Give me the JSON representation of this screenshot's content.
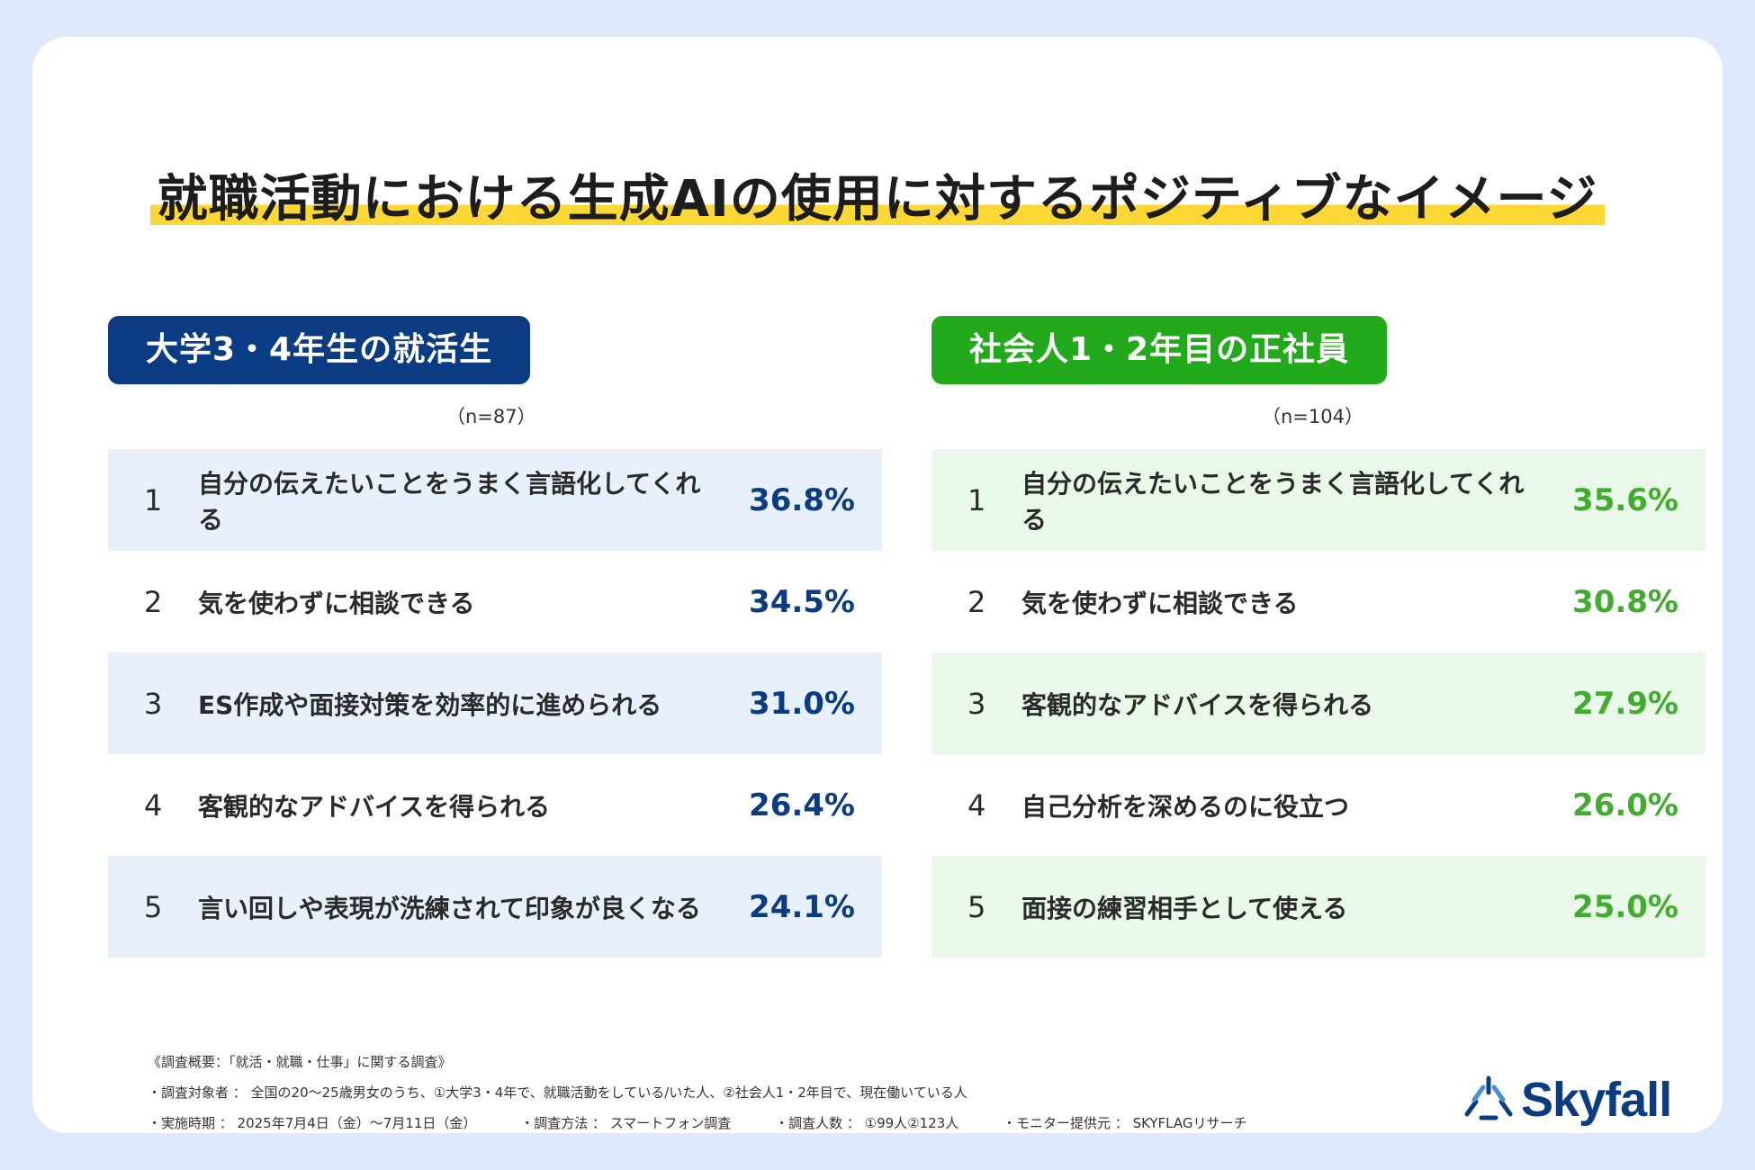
{
  "title": "就職活動における生成AIの使用に対するポジティブなイメージ",
  "colors": {
    "navy": "#0b3c83",
    "green": "#22aa1c",
    "green_text": "#41ad2f",
    "highlight": "#fdd835",
    "background": "#dde8fa"
  },
  "chart_data": [
    {
      "type": "table",
      "title": "大学3・4年生の就活生",
      "sample": "（n=87）",
      "columns": [
        "rank",
        "item",
        "percent"
      ],
      "rows": [
        {
          "rank": "1",
          "item": "自分の伝えたいことをうまく言語化してくれる",
          "percent": "36.8%",
          "value": 36.8
        },
        {
          "rank": "2",
          "item": "気を使わずに相談できる",
          "percent": "34.5%",
          "value": 34.5
        },
        {
          "rank": "3",
          "item": "ES作成や面接対策を効率的に進められる",
          "percent": "31.0%",
          "value": 31.0
        },
        {
          "rank": "4",
          "item": "客観的なアドバイスを得られる",
          "percent": "26.4%",
          "value": 26.4
        },
        {
          "rank": "5",
          "item": "言い回しや表現が洗練されて印象が良くなる",
          "percent": "24.1%",
          "value": 24.1
        }
      ]
    },
    {
      "type": "table",
      "title": "社会人1・2年目の正社員",
      "sample": "（n=104）",
      "columns": [
        "rank",
        "item",
        "percent"
      ],
      "rows": [
        {
          "rank": "1",
          "item": "自分の伝えたいことをうまく言語化してくれる",
          "percent": "35.6%",
          "value": 35.6
        },
        {
          "rank": "2",
          "item": "気を使わずに相談できる",
          "percent": "30.8%",
          "value": 30.8
        },
        {
          "rank": "3",
          "item": "客観的なアドバイスを得られる",
          "percent": "27.9%",
          "value": 27.9
        },
        {
          "rank": "4",
          "item": "自己分析を深めるのに役立つ",
          "percent": "26.0%",
          "value": 26.0
        },
        {
          "rank": "5",
          "item": "面接の練習相手として使える",
          "percent": "25.0%",
          "value": 25.0
        }
      ]
    }
  ],
  "footnote": {
    "heading": "《調査概要：「就活・就職・仕事」に関する調査》",
    "target": "・調査対象者 ： 全国の20〜25歳男女のうち、①大学3・4年で、就職活動をしている/いた人、②社会人1・2年目で、現在働いている人",
    "period": "・実施時期 ： 2025年7月4日（金）〜7月11日（金）",
    "method": "・調査方法 ： スマートフォン調査",
    "count": "・調査人数 ： ①99人②123人",
    "provider": "・モニター提供元 ： SKYFLAGリサーチ"
  },
  "logo": {
    "text": "Skyfall",
    "icon": "skyfall-logo-icon"
  }
}
